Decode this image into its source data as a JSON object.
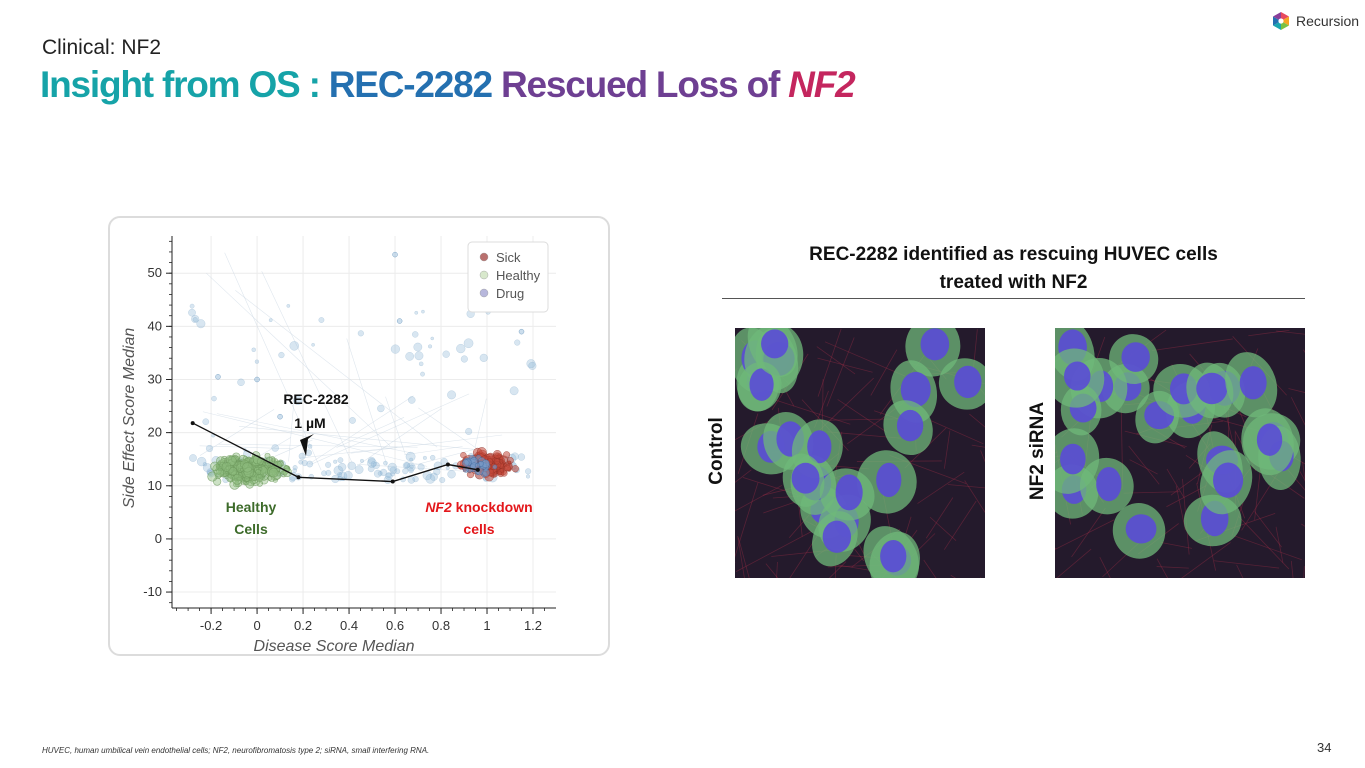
{
  "header": {
    "kicker": "Clinical: NF2",
    "title_part1": "Insight from OS : ",
    "title_part2": "REC-2282 ",
    "title_part3": "Rescued Loss of ",
    "title_part4": "NF2"
  },
  "brand": {
    "name": "Recursion",
    "icon": "recursion-hexagon-logo-icon"
  },
  "chart_data": {
    "type": "scatter",
    "xlabel": "Disease Score Median",
    "ylabel": "Side Effect Score Median",
    "xlim": [
      -0.37,
      1.3
    ],
    "ylim": [
      -13,
      57
    ],
    "x_ticks": [
      -0.2,
      0,
      0.2,
      0.4,
      0.6,
      0.8,
      1,
      1.2
    ],
    "x_tick_labels": [
      "-0.2",
      "0",
      "0.2",
      "0.4",
      "0.6",
      "0.8",
      "1",
      "1.2"
    ],
    "y_ticks": [
      -10,
      0,
      10,
      20,
      30,
      40,
      50
    ],
    "y_tick_labels": [
      "-10",
      "0",
      "10",
      "20",
      "30",
      "40",
      "50"
    ],
    "grid": true,
    "legend": {
      "position": "top-right",
      "entries": [
        {
          "name": "Sick",
          "color": "#b9706e"
        },
        {
          "name": "Healthy",
          "color": "#d8e8cc"
        },
        {
          "name": "Drug",
          "color": "#b7b7dc"
        }
      ]
    },
    "series": [
      {
        "name": "Sick",
        "color": "#c2483b",
        "x_range": [
          0.83,
          1.18
        ],
        "y_range": [
          11,
          17.5
        ],
        "count": 230
      },
      {
        "name": "Healthy",
        "color": "#8fbd7f",
        "x_range": [
          -0.3,
          0.22
        ],
        "y_range": [
          9,
          18
        ],
        "count": 320
      },
      {
        "name": "Drug",
        "color": "#8fb6d6",
        "x_range": [
          -0.3,
          1.2
        ],
        "y_range": [
          8,
          55
        ],
        "count": 170
      }
    ],
    "trajectory": {
      "name": "REC-2282 dose trajectory",
      "x": [
        -0.28,
        0.18,
        0.59,
        0.83,
        0.96
      ],
      "y": [
        21.8,
        11.6,
        10.8,
        14,
        13
      ]
    },
    "annotations": [
      {
        "id": "rec",
        "lines": [
          "REC-2282",
          "1 µM"
        ],
        "color": "#111111"
      },
      {
        "id": "healthy",
        "lines": [
          "Healthy",
          "Cells"
        ],
        "color": "#3d6b2a"
      },
      {
        "id": "nf2",
        "italic_part": "NF2",
        "rest": " knockdown",
        "line2": "cells",
        "color": "#e3171b"
      }
    ]
  },
  "panel": {
    "title_line1": "REC-2282 identified as rescuing HUVEC cells",
    "title_line2": "treated with NF2",
    "images": [
      {
        "label": "Control"
      },
      {
        "label": "NF2 siRNA"
      }
    ]
  },
  "footer": {
    "footnote": "HUVEC, human umbilical vein endothelial cells; NF2, neurofibromatosis type 2; siRNA, small interfering RNA.",
    "page_number": "34"
  }
}
